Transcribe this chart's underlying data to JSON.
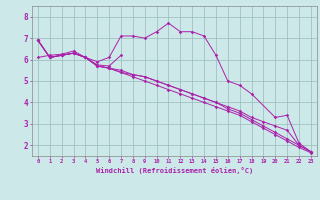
{
  "xlabel": "Windchill (Refroidissement éolien,°C)",
  "ylabel": "",
  "background_color": "#cce8e8",
  "line_color": "#aa22aa",
  "grid_color": "#99bbbb",
  "xlim": [
    -0.5,
    23.5
  ],
  "ylim": [
    1.5,
    8.5
  ],
  "yticks": [
    2,
    3,
    4,
    5,
    6,
    7,
    8
  ],
  "xticks": [
    0,
    1,
    2,
    3,
    4,
    5,
    6,
    7,
    8,
    9,
    10,
    11,
    12,
    13,
    14,
    15,
    16,
    17,
    18,
    19,
    20,
    21,
    22,
    23
  ],
  "series": [
    [
      6.9,
      6.1,
      6.2,
      6.3,
      6.1,
      5.9,
      6.1,
      7.1,
      7.1,
      7.0,
      7.3,
      7.7,
      7.3,
      7.3,
      7.1,
      6.2,
      5.0,
      4.8,
      4.4,
      null,
      3.3,
      3.4,
      2.1,
      1.7
    ],
    [
      6.9,
      6.1,
      6.2,
      6.3,
      6.1,
      5.75,
      5.7,
      6.2,
      null,
      null,
      null,
      null,
      null,
      null,
      null,
      null,
      null,
      null,
      null,
      null,
      null,
      null,
      null,
      null
    ],
    [
      6.1,
      6.2,
      6.25,
      6.4,
      6.1,
      5.7,
      5.6,
      5.5,
      5.3,
      5.2,
      5.0,
      4.8,
      4.6,
      4.4,
      4.2,
      4.0,
      3.8,
      3.6,
      3.3,
      3.1,
      2.9,
      2.7,
      2.0,
      1.7
    ],
    [
      6.9,
      6.1,
      6.2,
      6.3,
      6.1,
      5.7,
      5.6,
      5.4,
      5.3,
      5.2,
      5.0,
      4.8,
      4.6,
      4.4,
      4.2,
      4.0,
      3.7,
      3.5,
      3.2,
      2.9,
      2.6,
      2.3,
      2.0,
      1.7
    ],
    [
      6.9,
      6.1,
      6.2,
      6.3,
      6.1,
      5.7,
      5.6,
      5.4,
      5.2,
      5.0,
      4.8,
      4.6,
      4.4,
      4.2,
      4.0,
      3.8,
      3.6,
      3.4,
      3.1,
      2.8,
      2.5,
      2.2,
      1.9,
      1.65
    ]
  ]
}
